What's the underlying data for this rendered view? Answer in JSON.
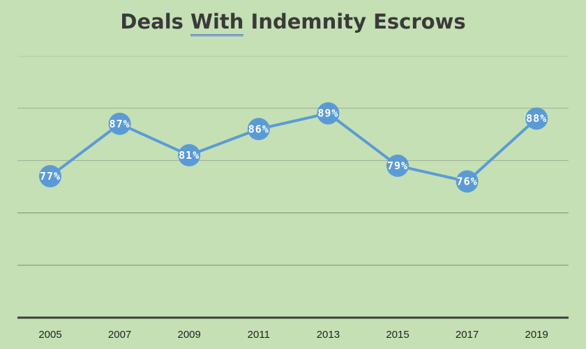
{
  "chart_data": {
    "type": "line",
    "title_parts": [
      "Deals ",
      "With",
      " Indemnity Escrows"
    ],
    "categories": [
      "2005",
      "2007",
      "2009",
      "2011",
      "2013",
      "2015",
      "2017",
      "2019"
    ],
    "series": [
      {
        "values": [
          0.77,
          0.87,
          0.81,
          0.86,
          0.89,
          0.79,
          0.76,
          0.88
        ]
      }
    ],
    "data_labels": [
      "77%",
      "87%",
      "81%",
      "86%",
      "89%",
      "79%",
      "76%",
      "88%"
    ],
    "xlabel": "",
    "ylabel": "",
    "ylim": [
      0.5,
      0.9
    ],
    "grid": true,
    "legend": "none",
    "colors": {
      "background": "#c5e0b4",
      "series": "#5b9bd5",
      "title": "#3a3a3a"
    }
  }
}
